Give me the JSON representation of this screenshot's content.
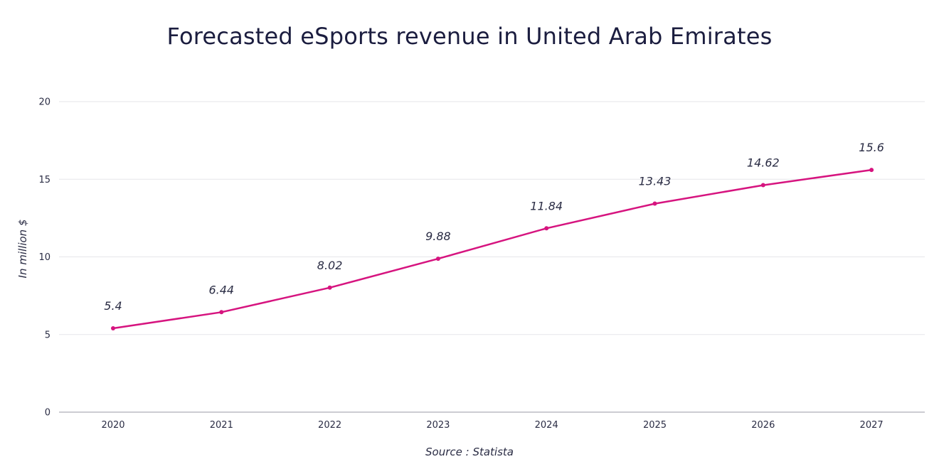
{
  "chart_data": {
    "type": "line",
    "title": "Forecasted eSports revenue in United Arab Emirates",
    "xlabel": "",
    "ylabel": "In million $",
    "source": "Source : Statista",
    "categories": [
      "2020",
      "2021",
      "2022",
      "2023",
      "2024",
      "2025",
      "2026",
      "2027"
    ],
    "series": [
      {
        "name": "eSports revenue",
        "values": [
          5.4,
          6.44,
          8.02,
          9.88,
          11.84,
          13.43,
          14.62,
          15.6
        ],
        "labels": [
          "5.4",
          "6.44",
          "8.02",
          "9.88",
          "11.84",
          "13.43",
          "14.62",
          "15.6"
        ],
        "color": "#d6147f"
      }
    ],
    "ylim": [
      0,
      20
    ],
    "yticks": [
      0,
      5,
      10,
      15,
      20
    ],
    "grid": true,
    "legend": "none",
    "colors": {
      "gridline": "#e6e6ea",
      "axis": "#9a9aa6",
      "text": "#2a2c44"
    }
  }
}
